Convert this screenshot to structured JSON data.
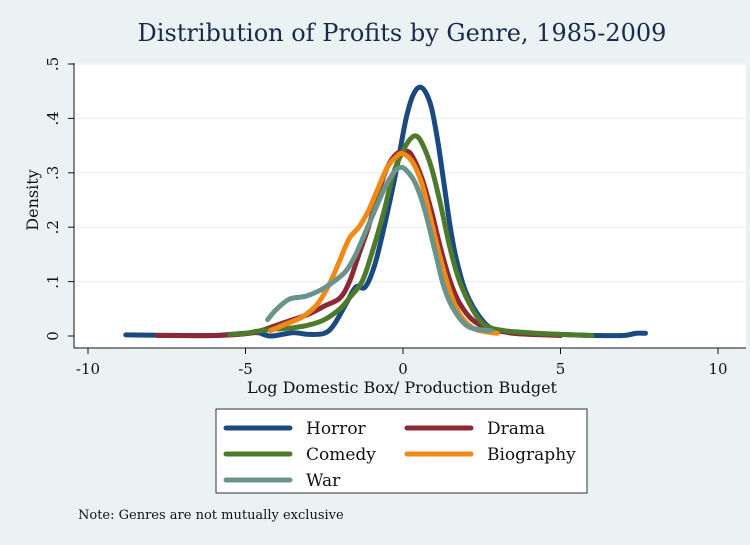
{
  "chart_data": {
    "type": "line",
    "title": "Distribution of Profits by Genre, 1985-2009",
    "xlabel": "Log Domestic Box/ Production Budget",
    "ylabel": "Density",
    "xlim": [
      -10,
      10
    ],
    "ylim": [
      0,
      0.5
    ],
    "x_ticks": [
      -10,
      -5,
      0,
      5,
      10
    ],
    "x_tick_labels": [
      "-10",
      "-5",
      "0",
      "5",
      "10"
    ],
    "y_ticks": [
      0,
      0.1,
      0.2,
      0.3,
      0.4,
      0.5
    ],
    "y_tick_labels": [
      "0",
      ".1",
      ".2",
      ".3",
      ".4",
      ".5"
    ],
    "grid": true,
    "legend_position": "bottom",
    "note": "Note: Genres are not mutually exclusive",
    "series": [
      {
        "name": "Horror",
        "color": "#1a4a80",
        "points": [
          [
            -8.8,
            0.002
          ],
          [
            -7,
            0.001
          ],
          [
            -6,
            0.001
          ],
          [
            -5,
            0.005
          ],
          [
            -4.6,
            0.006
          ],
          [
            -4.2,
            0.0
          ],
          [
            -3.5,
            0.006
          ],
          [
            -3,
            0.003
          ],
          [
            -2.5,
            0.005
          ],
          [
            -2.2,
            0.02
          ],
          [
            -1.8,
            0.06
          ],
          [
            -1.5,
            0.09
          ],
          [
            -1.2,
            0.09
          ],
          [
            -0.9,
            0.13
          ],
          [
            -0.6,
            0.2
          ],
          [
            -0.3,
            0.28
          ],
          [
            -0.1,
            0.34
          ],
          [
            0.1,
            0.4
          ],
          [
            0.3,
            0.44
          ],
          [
            0.5,
            0.457
          ],
          [
            0.7,
            0.45
          ],
          [
            0.9,
            0.42
          ],
          [
            1.1,
            0.36
          ],
          [
            1.3,
            0.28
          ],
          [
            1.5,
            0.2
          ],
          [
            1.7,
            0.14
          ],
          [
            2.0,
            0.08
          ],
          [
            2.5,
            0.03
          ],
          [
            3.0,
            0.01
          ],
          [
            4.0,
            0.005
          ],
          [
            5.0,
            0.003
          ],
          [
            6.0,
            0.001
          ],
          [
            7.0,
            0.001
          ],
          [
            7.4,
            0.005
          ],
          [
            7.7,
            0.005
          ]
        ]
      },
      {
        "name": "Drama",
        "color": "#8b2a33",
        "points": [
          [
            -7.8,
            0.001
          ],
          [
            -6,
            0.001
          ],
          [
            -5,
            0.004
          ],
          [
            -4.5,
            0.01
          ],
          [
            -4,
            0.02
          ],
          [
            -3.5,
            0.03
          ],
          [
            -3,
            0.04
          ],
          [
            -2.5,
            0.055
          ],
          [
            -2,
            0.07
          ],
          [
            -1.7,
            0.1
          ],
          [
            -1.4,
            0.15
          ],
          [
            -1.1,
            0.2
          ],
          [
            -0.8,
            0.26
          ],
          [
            -0.5,
            0.31
          ],
          [
            -0.2,
            0.335
          ],
          [
            0.1,
            0.34
          ],
          [
            0.3,
            0.33
          ],
          [
            0.6,
            0.29
          ],
          [
            0.9,
            0.23
          ],
          [
            1.2,
            0.16
          ],
          [
            1.5,
            0.1
          ],
          [
            1.8,
            0.06
          ],
          [
            2.2,
            0.03
          ],
          [
            2.7,
            0.015
          ],
          [
            3.5,
            0.005
          ],
          [
            4.5,
            0.002
          ],
          [
            5,
            0.001
          ]
        ]
      },
      {
        "name": "Comedy",
        "color": "#4e7a2e",
        "points": [
          [
            -5.5,
            0.003
          ],
          [
            -5,
            0.005
          ],
          [
            -4.5,
            0.01
          ],
          [
            -4,
            0.013
          ],
          [
            -3.5,
            0.015
          ],
          [
            -3,
            0.02
          ],
          [
            -2.5,
            0.03
          ],
          [
            -2,
            0.05
          ],
          [
            -1.7,
            0.07
          ],
          [
            -1.3,
            0.1
          ],
          [
            -1,
            0.15
          ],
          [
            -0.6,
            0.23
          ],
          [
            -0.3,
            0.3
          ],
          [
            0,
            0.34
          ],
          [
            0.2,
            0.36
          ],
          [
            0.4,
            0.368
          ],
          [
            0.6,
            0.355
          ],
          [
            0.9,
            0.31
          ],
          [
            1.2,
            0.24
          ],
          [
            1.5,
            0.16
          ],
          [
            1.8,
            0.1
          ],
          [
            2.2,
            0.05
          ],
          [
            2.6,
            0.02
          ],
          [
            3.2,
            0.01
          ],
          [
            4,
            0.006
          ],
          [
            5,
            0.003
          ],
          [
            6,
            0.001
          ]
        ]
      },
      {
        "name": "Biography",
        "color": "#ef8a17",
        "points": [
          [
            -4.2,
            0.01
          ],
          [
            -3.8,
            0.02
          ],
          [
            -3.2,
            0.035
          ],
          [
            -2.7,
            0.06
          ],
          [
            -2.3,
            0.1
          ],
          [
            -2,
            0.14
          ],
          [
            -1.7,
            0.18
          ],
          [
            -1.4,
            0.2
          ],
          [
            -1.1,
            0.23
          ],
          [
            -0.8,
            0.27
          ],
          [
            -0.5,
            0.31
          ],
          [
            -0.2,
            0.33
          ],
          [
            0,
            0.335
          ],
          [
            0.3,
            0.32
          ],
          [
            0.6,
            0.28
          ],
          [
            0.9,
            0.21
          ],
          [
            1.2,
            0.14
          ],
          [
            1.5,
            0.08
          ],
          [
            1.8,
            0.04
          ],
          [
            2.2,
            0.015
          ],
          [
            2.6,
            0.008
          ],
          [
            3.0,
            0.005
          ]
        ]
      },
      {
        "name": "War",
        "color": "#6a938b",
        "points": [
          [
            -4.3,
            0.03
          ],
          [
            -4,
            0.05
          ],
          [
            -3.6,
            0.068
          ],
          [
            -3.1,
            0.073
          ],
          [
            -2.6,
            0.085
          ],
          [
            -2.2,
            0.1
          ],
          [
            -1.8,
            0.12
          ],
          [
            -1.5,
            0.15
          ],
          [
            -1.2,
            0.19
          ],
          [
            -0.9,
            0.23
          ],
          [
            -0.6,
            0.27
          ],
          [
            -0.3,
            0.3
          ],
          [
            -0.1,
            0.31
          ],
          [
            0.1,
            0.305
          ],
          [
            0.4,
            0.28
          ],
          [
            0.7,
            0.23
          ],
          [
            1.0,
            0.16
          ],
          [
            1.3,
            0.09
          ],
          [
            1.6,
            0.05
          ],
          [
            2.0,
            0.02
          ],
          [
            2.4,
            0.012
          ],
          [
            2.8,
            0.01
          ]
        ]
      }
    ]
  }
}
